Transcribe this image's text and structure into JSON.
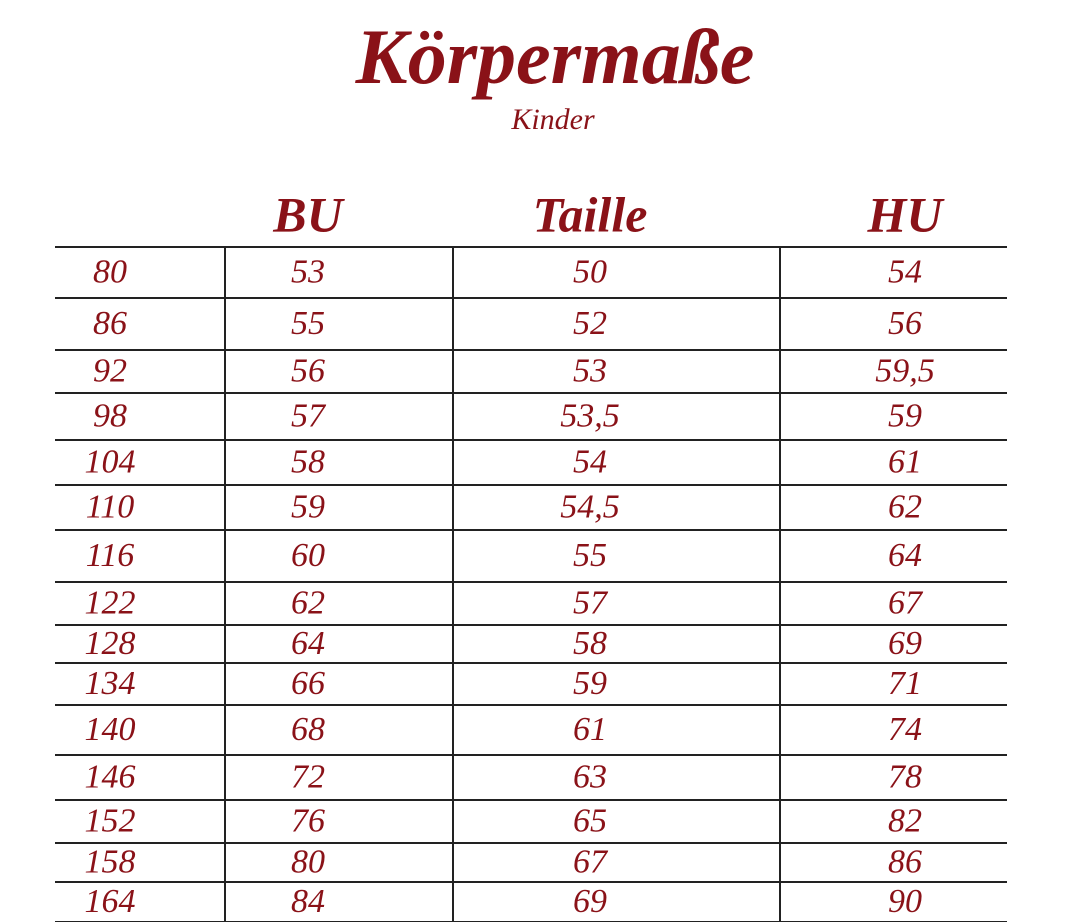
{
  "header": {
    "title": "Körpermaße",
    "subtitle": "Kinder"
  },
  "table": {
    "columns": [
      "BU",
      "Taille",
      "HU"
    ],
    "rows": [
      [
        "80",
        "53",
        "50",
        "54"
      ],
      [
        "86",
        "55",
        "52",
        "56"
      ],
      [
        "92",
        "56",
        "53",
        "59,5"
      ],
      [
        "98",
        "57",
        "53,5",
        "59"
      ],
      [
        "104",
        "58",
        "54",
        "61"
      ],
      [
        "110",
        "59",
        "54,5",
        "62"
      ],
      [
        "116",
        "60",
        "55",
        "64"
      ],
      [
        "122",
        "62",
        "57",
        "67"
      ],
      [
        "128",
        "64",
        "58",
        "69"
      ],
      [
        "134",
        "66",
        "59",
        "71"
      ],
      [
        "140",
        "68",
        "61",
        "74"
      ],
      [
        "146",
        "72",
        "63",
        "78"
      ],
      [
        "152",
        "76",
        "65",
        "82"
      ],
      [
        "158",
        "80",
        "67",
        "86"
      ],
      [
        "164",
        "84",
        "69",
        "90"
      ]
    ]
  }
}
